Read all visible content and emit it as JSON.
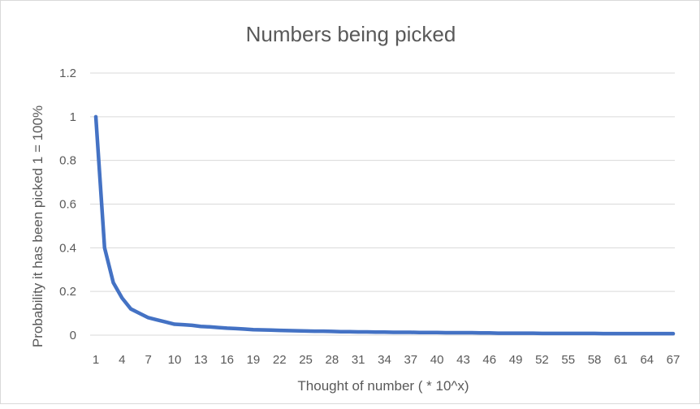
{
  "chart_data": {
    "type": "line",
    "title": "Numbers being picked",
    "xlabel": "Thought of number ( * 10^x)",
    "ylabel": "Probability it has been picked 1 = 100%",
    "ylim": [
      0,
      1.2
    ],
    "yticks": [
      "0",
      "0.2",
      "0.4",
      "0.6",
      "0.8",
      "1",
      "1.2"
    ],
    "xtick_labels": [
      "1",
      "4",
      "7",
      "10",
      "13",
      "16",
      "19",
      "22",
      "25",
      "28",
      "31",
      "34",
      "37",
      "40",
      "43",
      "46",
      "49",
      "52",
      "55",
      "58",
      "61",
      "64",
      "67"
    ],
    "grid": "horizontal",
    "legend": "none",
    "series": [
      {
        "color": "#4472c4",
        "x": [
          1,
          2,
          3,
          4,
          5,
          6,
          7,
          8,
          9,
          10,
          11,
          12,
          13,
          14,
          15,
          16,
          17,
          18,
          19,
          20,
          21,
          22,
          23,
          24,
          25,
          26,
          27,
          28,
          29,
          30,
          31,
          32,
          33,
          34,
          35,
          36,
          37,
          38,
          39,
          40,
          41,
          42,
          43,
          44,
          45,
          46,
          47,
          48,
          49,
          50,
          51,
          52,
          53,
          54,
          55,
          56,
          57,
          58,
          59,
          60,
          61,
          62,
          63,
          64,
          65,
          66,
          67
        ],
        "values": [
          1.0,
          0.4,
          0.24,
          0.17,
          0.12,
          0.1,
          0.08,
          0.07,
          0.06,
          0.05,
          0.048,
          0.045,
          0.04,
          0.038,
          0.035,
          0.032,
          0.03,
          0.028,
          0.025,
          0.024,
          0.023,
          0.022,
          0.021,
          0.02,
          0.019,
          0.018,
          0.018,
          0.017,
          0.016,
          0.016,
          0.015,
          0.015,
          0.014,
          0.014,
          0.013,
          0.013,
          0.013,
          0.012,
          0.012,
          0.012,
          0.011,
          0.011,
          0.011,
          0.011,
          0.01,
          0.01,
          0.009,
          0.009,
          0.009,
          0.009,
          0.009,
          0.008,
          0.008,
          0.008,
          0.008,
          0.008,
          0.008,
          0.008,
          0.007,
          0.007,
          0.007,
          0.007,
          0.007,
          0.007,
          0.007,
          0.007,
          0.007
        ]
      }
    ]
  }
}
